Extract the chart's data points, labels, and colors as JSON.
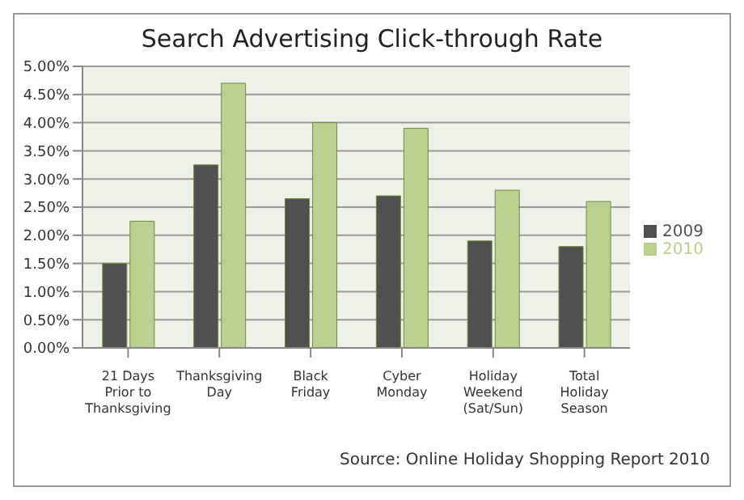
{
  "chart_data": {
    "type": "bar",
    "title": "Search Advertising Click-through Rate",
    "categories": [
      "21 Days Prior to Thanksgiving",
      "Thanksgiving Day",
      "Black Friday",
      "Cyber Monday",
      "Holiday Weekend (Sat/Sun)",
      "Total Holiday Season"
    ],
    "series": [
      {
        "name": "2009",
        "color": "#505050",
        "values": [
          1.5,
          3.25,
          2.65,
          2.7,
          1.9,
          1.8
        ]
      },
      {
        "name": "2010",
        "color": "#bad08f",
        "values": [
          2.25,
          4.7,
          4.0,
          3.9,
          2.8,
          2.6
        ]
      }
    ],
    "ylim": [
      0,
      5
    ],
    "yticks": [
      {
        "value": 0,
        "label": "0.00%"
      },
      {
        "value": 0.5,
        "label": "0.50%"
      },
      {
        "value": 1,
        "label": "1.00%"
      },
      {
        "value": 1.5,
        "label": "1.50%"
      },
      {
        "value": 2,
        "label": "2.00%"
      },
      {
        "value": 2.5,
        "label": "2.50%"
      },
      {
        "value": 3,
        "label": "3.00%"
      },
      {
        "value": 3.5,
        "label": "3.50%"
      },
      {
        "value": 4,
        "label": "4.00%"
      },
      {
        "value": 4.5,
        "label": "4.50%"
      },
      {
        "value": 5,
        "label": "5.00%"
      }
    ],
    "grid": "y",
    "legend": "right",
    "annotations": [
      "Source: Online Holiday Shopping Report 2010"
    ]
  }
}
